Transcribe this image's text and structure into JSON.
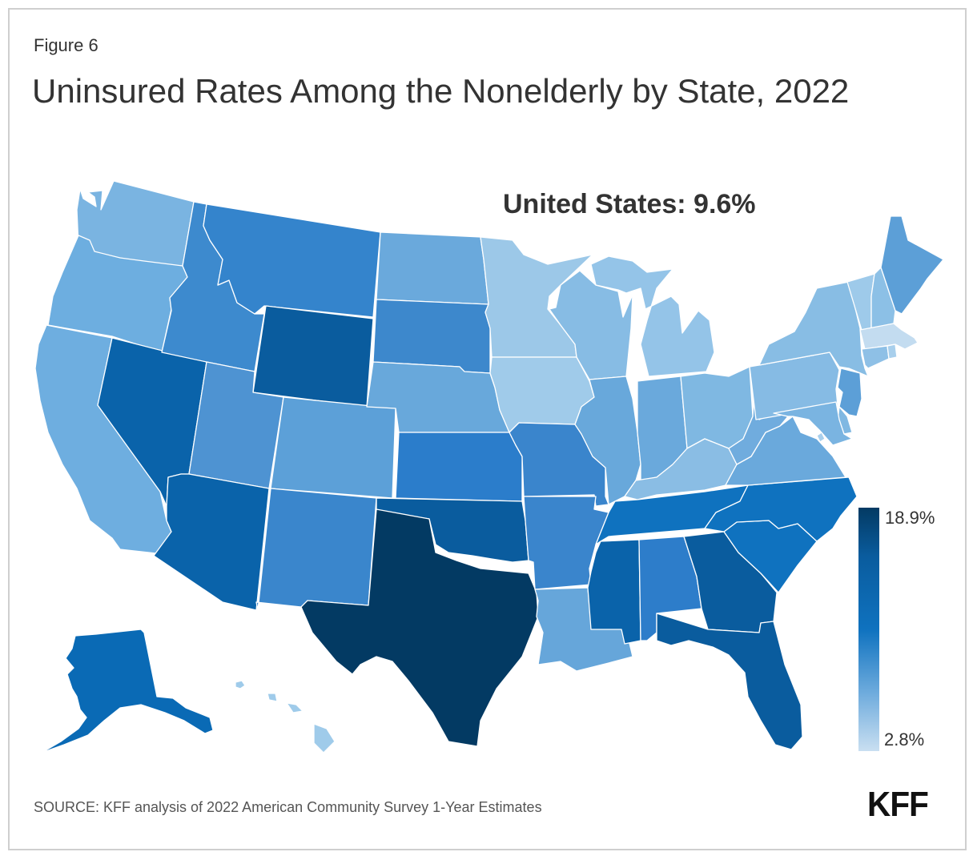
{
  "figure_label": "Figure 6",
  "title": "Uninsured Rates Among the Nonelderly by State, 2022",
  "us_total": "United States: 9.6%",
  "legend": {
    "max_label": "18.9%",
    "min_label": "2.8%",
    "min_value": 2.8,
    "max_value": 18.9,
    "color_low": "#c9dff1",
    "color_high": "#033a63"
  },
  "source": "SOURCE: KFF analysis of 2022 American Community Survey 1-Year Estimates",
  "logo": "KFF",
  "state_colors": {
    "WA": "#7ab4e1",
    "OR": "#6daee0",
    "CA": "#6eaee0",
    "NV": "#0a63aa",
    "ID": "#3d8ace",
    "MT": "#3484cc",
    "WY": "#0a5c9e",
    "UT": "#4e93d2",
    "AZ": "#0a63aa",
    "CO": "#5ca0d8",
    "NM": "#3a86cc",
    "ND": "#6aa9dc",
    "SD": "#3d88cc",
    "NE": "#68a8db",
    "KS": "#2b7dcb",
    "OK": "#0a5c9e",
    "TX": "#033a63",
    "MN": "#9cc8e8",
    "IA": "#a0cbea",
    "MO": "#3a85cc",
    "AR": "#3a85cc",
    "LA": "#66a6da",
    "WI": "#87bce4",
    "IL": "#68a8db",
    "MI": "#94c4e8",
    "IN": "#6aa9dc",
    "OH": "#7fb8e2",
    "KY": "#8abde4",
    "TN": "#0f72bf",
    "MS": "#0a63aa",
    "AL": "#2d7dca",
    "GA": "#0a5c9e",
    "FL": "#0a5c9e",
    "SC": "#0f72bf",
    "NC": "#0f72bf",
    "VA": "#6aa9dc",
    "WV": "#70acde",
    "PA": "#86bbe4",
    "NY": "#88bde4",
    "VT": "#9ecaea",
    "NH": "#8cc0e6",
    "ME": "#5c9fd7",
    "MA": "#c3dcf0",
    "CT": "#8ec0e6",
    "RI": "#a8cfec",
    "NJ": "#5c9fd7",
    "DE": "#80b8e2",
    "MD": "#7ab4e1",
    "DC": "#a8cfec",
    "AK": "#0a6ab5",
    "HI": "#9fcbea"
  }
}
